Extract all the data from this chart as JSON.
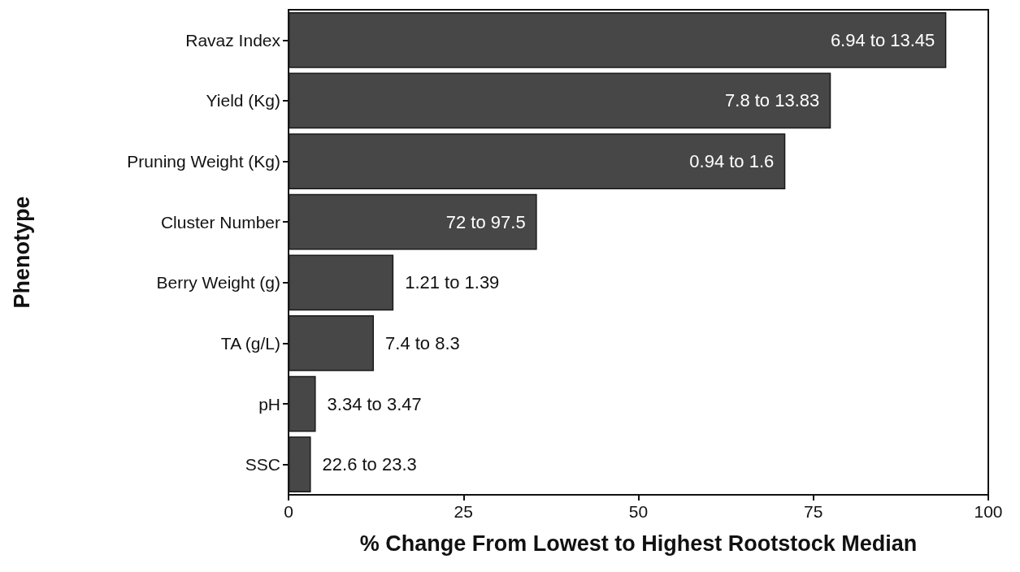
{
  "chart_data": {
    "type": "bar",
    "orientation": "horizontal",
    "xlabel": "% Change From Lowest to Highest Rootstock Median",
    "ylabel": "Phenotype",
    "categories": [
      "Ravaz Index",
      "Yield (Kg)",
      "Pruning Weight (Kg)",
      "Cluster Number",
      "Berry Weight (g)",
      "TA (g/L)",
      "pH",
      "SSC"
    ],
    "values": [
      94,
      77.5,
      71,
      35.5,
      15,
      12.2,
      3.9,
      3.2
    ],
    "annotations": [
      {
        "text": "6.94 to 13.45",
        "x": 94,
        "y": "Ravaz Index"
      },
      {
        "text": "7.8 to 13.83",
        "x": 77.5,
        "y": "Yield (Kg)"
      },
      {
        "text": "0.94 to 1.6",
        "x": 71,
        "y": "Pruning Weight (Kg)"
      },
      {
        "text": "72 to 97.5",
        "x": 35.5,
        "y": "Cluster Number"
      },
      {
        "text": "1.21 to 1.39",
        "x": 15,
        "y": "Berry Weight (g)"
      },
      {
        "text": "7.4 to 8.3",
        "x": 12.2,
        "y": "TA (g/L)"
      },
      {
        "text": "3.34 to 3.47",
        "x": 3.9,
        "y": "pH"
      },
      {
        "text": "22.6 to 23.3",
        "x": 3.2,
        "y": "SSC"
      }
    ],
    "color": "#474747",
    "xlim": [
      0,
      100
    ],
    "xticks": [
      0,
      25,
      50,
      75,
      100
    ],
    "grid": false
  }
}
